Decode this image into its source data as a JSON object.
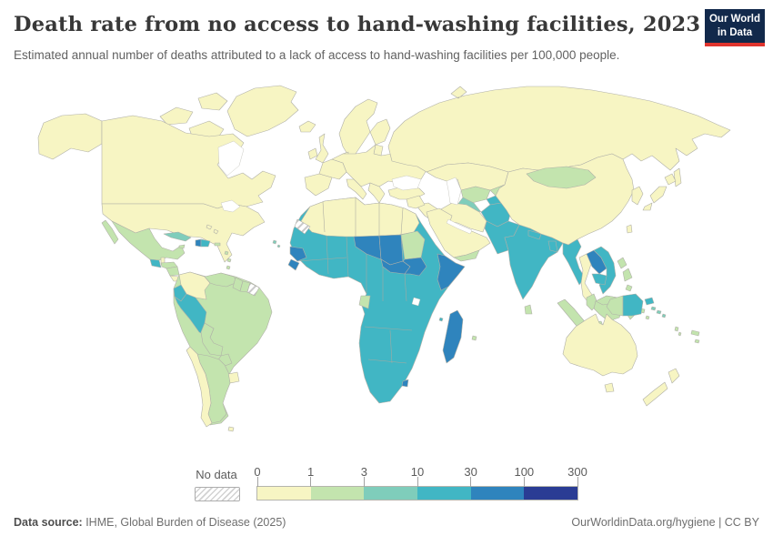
{
  "header": {
    "title": "Death rate from no access to hand-washing facilities, 2023",
    "subtitle": "Estimated annual number of deaths attributed to a lack of access to hand-washing facilities per 100,000 people.",
    "logo": {
      "line1": "Our World",
      "line2": "in Data",
      "bg_color": "#12294b",
      "accent_color": "#e0342e"
    }
  },
  "footer": {
    "source_label": "Data source:",
    "source_value": " IHME, Global Burden of Disease (2025)",
    "link": "OurWorldinData.org/hygiene | CC BY"
  },
  "chart_data": {
    "type": "choropleth_world_map",
    "title": "Death rate from no access to hand-washing facilities, 2023",
    "unit": "deaths per 100,000 people",
    "legend": {
      "no_data_label": "No data",
      "tick_labels": [
        "0",
        "1",
        "3",
        "10",
        "30",
        "100",
        "300"
      ],
      "bucket_names": [
        "0-1",
        "1-3",
        "3-10",
        "10-30",
        "30-100",
        "100-300"
      ],
      "colors": [
        "#f7f5c3",
        "#c3e4ae",
        "#7fcdbb",
        "#41b6c4",
        "#2f84bd",
        "#2a3c94"
      ],
      "no_data_hatch_color": "#cccccc",
      "position": "bottom"
    },
    "ocean_color": "#ffffff",
    "border_color": "#b0b0a8",
    "countries": {
      "greenland": "b0",
      "canada": "b0",
      "arctic-islands": "b0",
      "alaska": "b0",
      "usa": "b0",
      "bahamas": "b0",
      "belize": "b0",
      "costa-rica": "b0",
      "colombia": "b0",
      "uruguay": "b0",
      "chile": "b0",
      "falkland-islands": "b0",
      "iceland": "b0",
      "ireland": "b0",
      "united-kingdom": "b0",
      "norway-sweden": "b0",
      "finland": "b0",
      "denmark": "b0",
      "baltics": "b0",
      "iberia": "b0",
      "france": "b0",
      "central-europe": "b0",
      "italy": "b0",
      "balkans": "b0",
      "turkey": "b0",
      "russia": "b0",
      "kazakhstan": "b0",
      "iran": "b0",
      "iraq": "b0",
      "levant": "b0",
      "saudi-arabia": "b0",
      "north-africa": "b0",
      "china": "b0",
      "korea": "b0",
      "japan": "b0",
      "taiwan": "b0",
      "thailand": "b0",
      "australia": "b0",
      "new-zealand": "b0",
      "mexico": "b1",
      "honduras": "b1",
      "nicaragua": "b1",
      "panama": "b1",
      "jamaica": "b1",
      "puerto-rico": "b1",
      "lesser-antilles": "b1",
      "venezuela": "b1",
      "guyana": "b1",
      "suriname": "b1",
      "brazil": "b1",
      "bolivia": "b1",
      "paraguay": "b1",
      "argentina": "b1",
      "mongolia": "b1",
      "uzbekistan": "b1",
      "kyrgyzstan": "b1",
      "yemen": "b1",
      "sudan": "b1",
      "gabon-eq-guinea": "b1",
      "sri-lanka": "b1",
      "malaysia": "b1",
      "malaysia-borneo": "b1",
      "indonesia-sumatra": "b1",
      "indonesia-java": "b1",
      "indonesia-borneo": "b1",
      "indonesia-sulawesi": "b1",
      "indonesia-moluccas": "b1",
      "indonesia-papua": "b1",
      "timor": "b1",
      "philippines": "b1",
      "vanuatu": "b1",
      "new-caledonia": "b1",
      "fiji": "b1",
      "mauritius": "b1",
      "cuba": "b2",
      "turkmenistan": "b2",
      "cape-verde": "b2",
      "solomon-islands": "b2",
      "guatemala": "b3",
      "dominican-republic": "b3",
      "ecuador": "b3",
      "peru": "b3",
      "sub-saharan-africa": "b3",
      "comoros": "b3",
      "tajikistan": "b3",
      "afghanistan": "b3",
      "pakistan": "b3",
      "india": "b3",
      "nepal": "b3",
      "bangladesh": "b3",
      "myanmar": "b3",
      "vietnam": "b3",
      "cambodia": "b3",
      "papua-new-guinea": "b3",
      "new-britain": "b3",
      "haiti": "b4",
      "guinea": "b4",
      "sierra-leone": "b4",
      "niger": "b4",
      "chad": "b4",
      "central-african-republic": "b4",
      "south-sudan": "b4",
      "somalia": "b4",
      "lesotho": "b4",
      "madagascar": "b4",
      "laos": "b4",
      "french-guiana": "nd",
      "western-sahara": "nd"
    }
  }
}
